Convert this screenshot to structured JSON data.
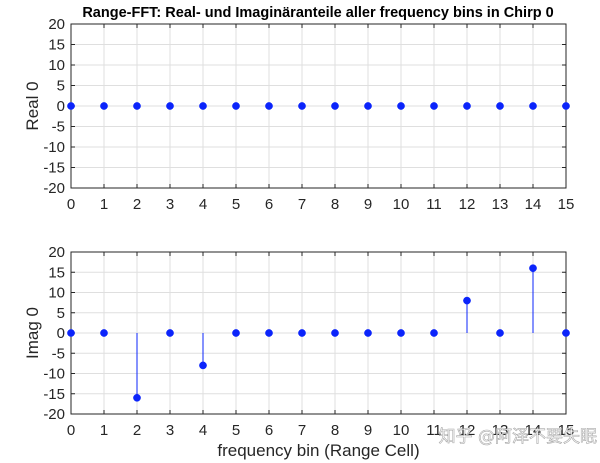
{
  "chart_data": [
    {
      "type": "scatter",
      "style": "stem",
      "title": "Range-FFT: Real- und Imaginäranteile aller frequency bins in Chirp 0",
      "xlabel": "",
      "ylabel": "Real 0",
      "xlim": [
        0,
        15
      ],
      "ylim": [
        -20,
        20
      ],
      "xticks": [
        0,
        1,
        2,
        3,
        4,
        5,
        6,
        7,
        8,
        9,
        10,
        11,
        12,
        13,
        14,
        15
      ],
      "yticks": [
        -20,
        -15,
        -10,
        -5,
        0,
        5,
        10,
        15,
        20
      ],
      "grid": true,
      "series": [
        {
          "x": [
            0,
            1,
            2,
            3,
            4,
            5,
            6,
            7,
            8,
            9,
            10,
            11,
            12,
            13,
            14,
            15
          ],
          "y": [
            0,
            0,
            0,
            0,
            0,
            0,
            0,
            0,
            0,
            0,
            0,
            0,
            0,
            0,
            0,
            0
          ],
          "color": "#0b24fb"
        }
      ]
    },
    {
      "type": "scatter",
      "style": "stem",
      "title": "",
      "xlabel": "frequency bin (Range Cell)",
      "ylabel": "Imag 0",
      "xlim": [
        0,
        15
      ],
      "ylim": [
        -20,
        20
      ],
      "xticks": [
        0,
        1,
        2,
        3,
        4,
        5,
        6,
        7,
        8,
        9,
        10,
        11,
        12,
        13,
        14,
        15
      ],
      "yticks": [
        -20,
        -15,
        -10,
        -5,
        0,
        5,
        10,
        15,
        20
      ],
      "grid": true,
      "series": [
        {
          "x": [
            0,
            1,
            2,
            3,
            4,
            5,
            6,
            7,
            8,
            9,
            10,
            11,
            12,
            13,
            14,
            15
          ],
          "y": [
            0,
            0,
            -16,
            0,
            -8,
            0,
            0,
            0,
            0,
            0,
            0,
            0,
            8,
            0,
            16,
            0
          ],
          "color": "#0b24fb"
        }
      ]
    }
  ],
  "watermark": {
    "text": "知乎 @阿泽不要失眠"
  },
  "colors": {
    "axis": "#262626",
    "grid": "#dfdfdf",
    "marker": "#0b24fb",
    "stem": "#0b24fb"
  }
}
